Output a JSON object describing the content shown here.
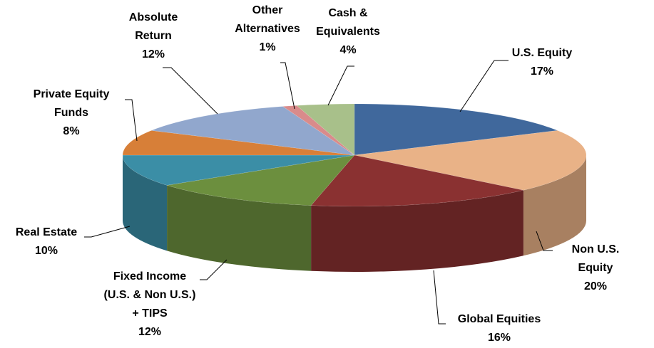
{
  "chart_data": {
    "type": "pie3d",
    "categories": [
      "U.S. Equity",
      "Non U.S. Equity",
      "Global Equities",
      "Fixed Income\n(U.S. & Non U.S.)\n+ TIPS",
      "Real Estate",
      "Private Equity\nFunds",
      "Absolute\nReturn",
      "Other\nAlternatives",
      "Cash &\nEquivalents"
    ],
    "values": [
      17,
      20,
      16,
      12,
      10,
      8,
      12,
      1,
      4
    ],
    "value_labels": [
      "17%",
      "20%",
      "16%",
      "12%",
      "10%",
      "8%",
      "12%",
      "1%",
      "4%"
    ],
    "colors": [
      "#40689c",
      "#e9b287",
      "#8a3131",
      "#6c8f3e",
      "#3b8ea6",
      "#d77f38",
      "#91a7cd",
      "#d98b8b",
      "#a8c08a"
    ]
  }
}
